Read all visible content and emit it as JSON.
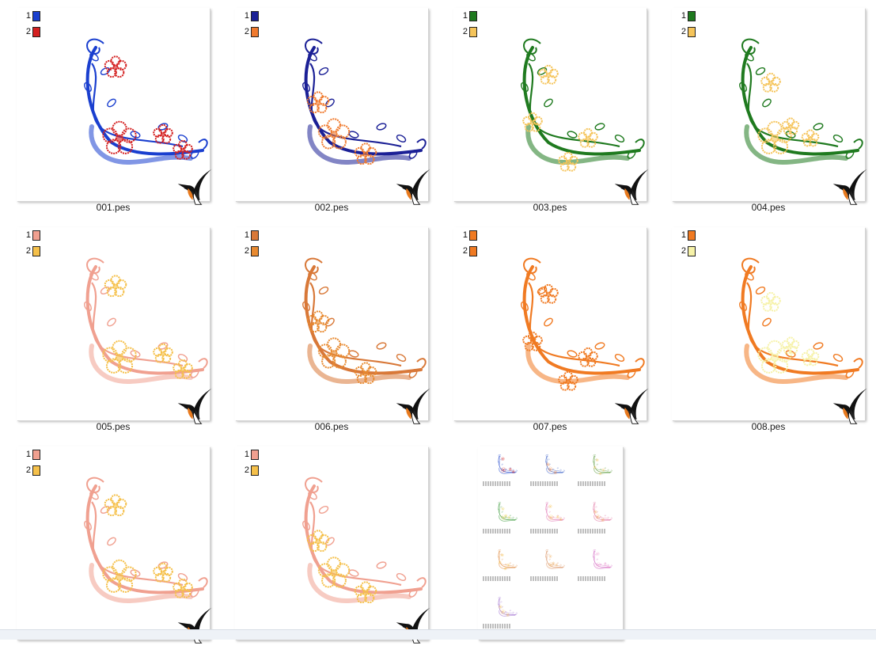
{
  "files": [
    {
      "name": "001.pes",
      "colors": [
        {
          "num": "1",
          "hex": "#1a3fcf"
        },
        {
          "num": "2",
          "hex": "#d42020"
        }
      ]
    },
    {
      "name": "002.pes",
      "colors": [
        {
          "num": "1",
          "hex": "#1b2096"
        },
        {
          "num": "2",
          "hex": "#f07a2e"
        }
      ]
    },
    {
      "name": "003.pes",
      "colors": [
        {
          "num": "1",
          "hex": "#1f7a1f"
        },
        {
          "num": "2",
          "hex": "#f5c45a"
        }
      ]
    },
    {
      "name": "004.pes",
      "colors": [
        {
          "num": "1",
          "hex": "#1f7a1f"
        },
        {
          "num": "2",
          "hex": "#f5c45a"
        }
      ]
    },
    {
      "name": "005.pes",
      "colors": [
        {
          "num": "1",
          "hex": "#f0a090"
        },
        {
          "num": "2",
          "hex": "#f5c04a"
        }
      ]
    },
    {
      "name": "006.pes",
      "colors": [
        {
          "num": "1",
          "hex": "#d87838"
        },
        {
          "num": "2",
          "hex": "#e88a30"
        }
      ]
    },
    {
      "name": "007.pes",
      "colors": [
        {
          "num": "1",
          "hex": "#f07a22"
        },
        {
          "num": "2",
          "hex": "#f07a22"
        }
      ]
    },
    {
      "name": "008.pes",
      "colors": [
        {
          "num": "1",
          "hex": "#f07a22"
        },
        {
          "num": "2",
          "hex": "#f6f2a8"
        }
      ]
    },
    {
      "name": "",
      "colors": [
        {
          "num": "1",
          "hex": "#f0a090"
        },
        {
          "num": "2",
          "hex": "#f5c04a"
        }
      ]
    },
    {
      "name": "",
      "colors": [
        {
          "num": "1",
          "hex": "#f0a090"
        },
        {
          "num": "2",
          "hex": "#f5c04a"
        }
      ]
    }
  ],
  "preview_sheet": {
    "name": "",
    "mini_colors": [
      [
        "#2a4fcf",
        "#d42020"
      ],
      [
        "#3a60c8",
        "#f07a2e"
      ],
      [
        "#5a9a3a",
        "#f5c45a"
      ],
      [
        "#3a9a3a",
        "#e8d050"
      ],
      [
        "#e070b0",
        "#f5c04a"
      ],
      [
        "#e070a0",
        "#f0a040"
      ],
      [
        "#e08a40",
        "#f5c04a"
      ],
      [
        "#d89060",
        "#f0b060"
      ],
      [
        "#d060c0",
        "#f0a0d0"
      ],
      [
        "#a070d0",
        "#f5c04a"
      ]
    ]
  }
}
